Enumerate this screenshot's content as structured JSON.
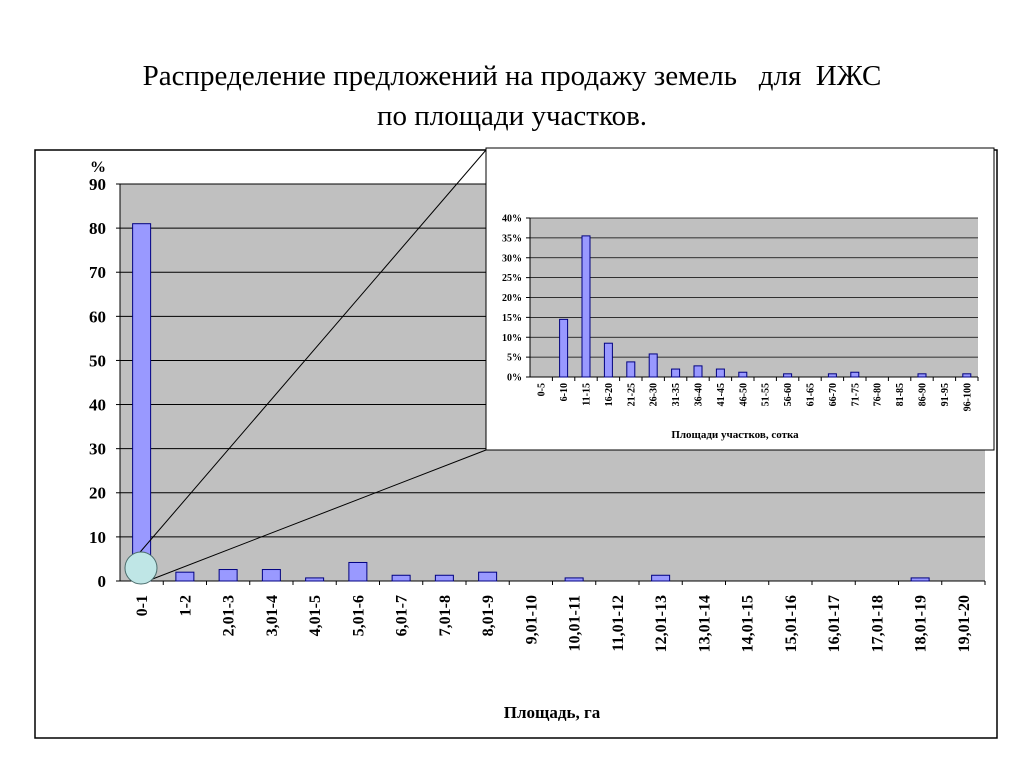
{
  "title": {
    "line1": "Распределение предложений на продажу земель   для  ИЖС",
    "line2": "по площади участков."
  },
  "colors": {
    "bar_fill": "#9999ff",
    "bar_stroke": "#000080",
    "plot_bg": "#c0c0c0",
    "grid": "#000000",
    "zoom_marker": "#bfe6e6"
  },
  "chart_data": [
    {
      "type": "bar",
      "title": "",
      "ylabel": "%",
      "xlabel": "Площадь, га",
      "ylim": [
        0,
        90
      ],
      "yticks": [
        0,
        10,
        20,
        30,
        40,
        50,
        60,
        70,
        80,
        90
      ],
      "grid": true,
      "categories": [
        "0-1",
        "1-2",
        "2,01-3",
        "3,01-4",
        "4,01-5",
        "5,01-6",
        "6,01-7",
        "7,01-8",
        "8,01-9",
        "9,01-10",
        "10,01-11",
        "11,01-12",
        "12,01-13",
        "13,01-14",
        "14,01-15",
        "15,01-16",
        "16,01-17",
        "17,01-18",
        "18,01-19",
        "19,01-20"
      ],
      "values": [
        81,
        2,
        2.6,
        2.6,
        0.7,
        4.2,
        1.3,
        1.3,
        2,
        0,
        0.7,
        0,
        1.3,
        0,
        0,
        0,
        0,
        0,
        0.7,
        0
      ]
    },
    {
      "type": "bar",
      "title": "",
      "ylabel": "",
      "xlabel": "Площади участков, сотка",
      "ylim": [
        0,
        0.4
      ],
      "yticks": [
        "0%",
        "5%",
        "10%",
        "15%",
        "20%",
        "25%",
        "30%",
        "35%",
        "40%"
      ],
      "grid": true,
      "categories": [
        "0-5",
        "6-10",
        "11-15",
        "16-20",
        "21-25",
        "26-30",
        "31-35",
        "36-40",
        "41-45",
        "46-50",
        "51-55",
        "56-60",
        "61-65",
        "66-70",
        "71-75",
        "76-80",
        "81-85",
        "86-90",
        "91-95",
        "96-100"
      ],
      "values": [
        0,
        0.145,
        0.355,
        0.085,
        0.038,
        0.058,
        0.02,
        0.028,
        0.02,
        0.012,
        0,
        0.008,
        0,
        0.008,
        0.012,
        0,
        0,
        0.008,
        0,
        0.008
      ]
    }
  ]
}
